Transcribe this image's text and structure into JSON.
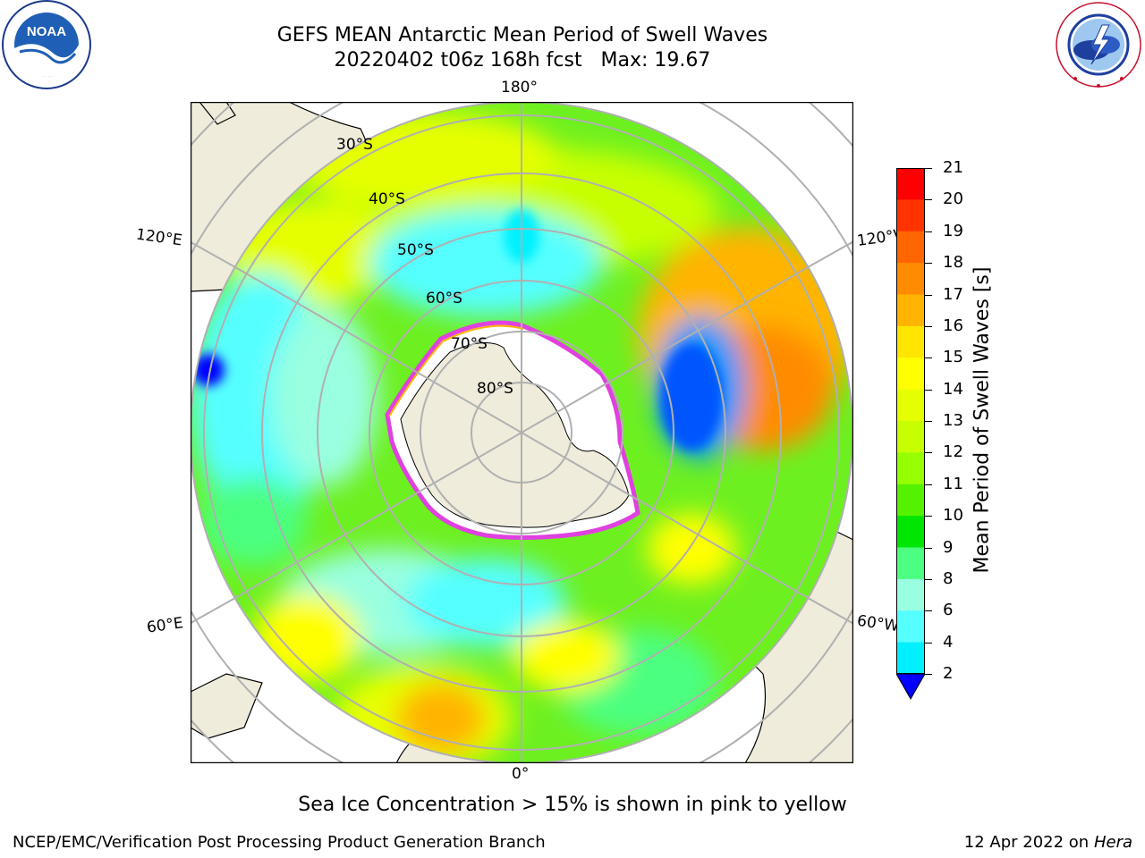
{
  "title": {
    "line1": "GEFS MEAN Antarctic Mean Period of Swell Waves",
    "line2": "20220402 t06z 168h fcst   Max: 19.67"
  },
  "logos": {
    "left": {
      "text": "NOAA",
      "ring_text": "NATIONAL OCEANIC AND ATMOSPHERIC ADMINISTRATION · U.S. DEPARTMENT OF COMMERCE"
    },
    "right": {
      "ring_text": "NATIONAL WEATHER SERVICE"
    }
  },
  "map": {
    "longitude_labels": {
      "top": "180°",
      "bottom": "0°",
      "upper_left": "120°E",
      "upper_right": "120°W",
      "lower_left": "60°E",
      "lower_right": "60°W"
    },
    "latitude_labels": [
      "30°S",
      "40°S",
      "50°S",
      "60°S",
      "70°S",
      "80°S"
    ]
  },
  "colorbar": {
    "label": "Mean Period of Swell Waves [s]",
    "ticks": [
      "21",
      "20",
      "19",
      "18",
      "17",
      "16",
      "15",
      "14",
      "13",
      "12",
      "11",
      "10",
      "9",
      "8",
      "6",
      "4",
      "2"
    ],
    "colors": [
      "#ff0000",
      "#ff3300",
      "#ff6600",
      "#ff8c00",
      "#ffb400",
      "#ffe600",
      "#ffff00",
      "#e6ff00",
      "#c8ff00",
      "#96ff00",
      "#55f200",
      "#00e600",
      "#4cff80",
      "#99ffe0",
      "#55ffff",
      "#00f0ff",
      "#0099ff",
      "#0055ff"
    ],
    "extend_color": "#0000ff"
  },
  "caption": "Sea Ice Concentration > 15% is shown in pink to yellow",
  "footer": {
    "left": "NCEP/EMC/Verification Post Processing Product Generation Branch",
    "right_date": "12 Apr 2022 on ",
    "right_host": "Hera"
  }
}
